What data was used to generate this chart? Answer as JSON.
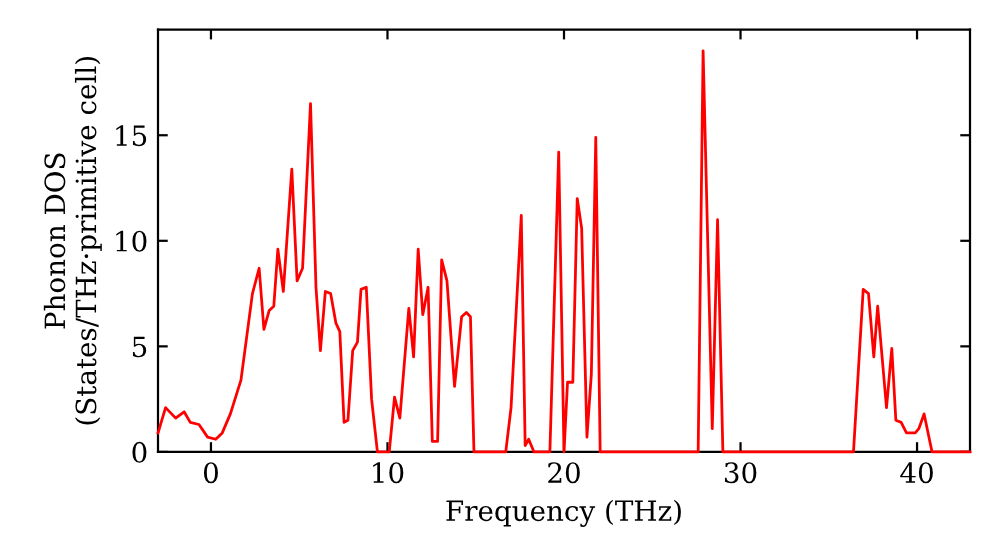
{
  "chart_data": {
    "type": "line",
    "xlabel": "Frequency (THz)",
    "ylabel": "Phonon DOS\n(States/THz·primitive cell)",
    "xlim": [
      -3,
      43
    ],
    "ylim": [
      0,
      20
    ],
    "xticks": [
      0,
      10,
      20,
      30,
      40
    ],
    "yticks": [
      0,
      5,
      10,
      15
    ],
    "grid": false,
    "marker": "none",
    "line_style": "solid",
    "series": [
      {
        "color": "#ff0000",
        "x": [
          -3,
          -2.57,
          -2.0,
          -1.52,
          -1.17,
          -0.68,
          -0.19,
          0.27,
          0.64,
          1.1,
          1.7,
          2.35,
          2.73,
          3.0,
          3.3,
          3.56,
          3.79,
          4.1,
          4.58,
          4.88,
          5.19,
          5.64,
          5.95,
          6.2,
          6.48,
          6.78,
          7.08,
          7.3,
          7.54,
          7.76,
          8.03,
          8.3,
          8.5,
          8.8,
          9.1,
          9.43,
          10.1,
          10.4,
          10.7,
          11.21,
          11.48,
          11.74,
          12.0,
          12.3,
          12.54,
          12.84,
          13.07,
          13.37,
          13.8,
          14.2,
          14.47,
          14.7,
          14.9,
          16.7,
          17.0,
          17.58,
          17.8,
          18.0,
          18.3,
          19.2,
          19.7,
          20.0,
          20.2,
          20.5,
          20.75,
          21.0,
          21.3,
          21.55,
          21.8,
          22.05,
          27.6,
          27.88,
          28.4,
          28.7,
          29.0,
          36.4,
          36.95,
          37.25,
          37.55,
          37.77,
          38.27,
          38.57,
          38.8,
          39.1,
          39.4,
          39.9,
          40.1,
          40.4,
          40.85,
          43
        ],
        "values": [
          0.9,
          2.1,
          1.6,
          1.9,
          1.4,
          1.3,
          0.7,
          0.6,
          0.9,
          1.8,
          3.4,
          7.5,
          8.7,
          5.8,
          6.7,
          6.9,
          9.6,
          7.6,
          13.4,
          8.1,
          8.7,
          16.5,
          7.8,
          4.8,
          7.6,
          7.5,
          6.1,
          5.7,
          1.4,
          1.5,
          4.8,
          5.2,
          7.7,
          7.8,
          2.5,
          0,
          0,
          2.6,
          1.6,
          6.8,
          4.5,
          9.6,
          6.5,
          7.8,
          0.5,
          0.5,
          9.1,
          8.1,
          3.1,
          6.4,
          6.6,
          6.4,
          0,
          0,
          2.1,
          11.2,
          0.3,
          0.6,
          0,
          0,
          14.2,
          0,
          3.3,
          3.3,
          12.0,
          10.6,
          0.7,
          3.7,
          14.9,
          0,
          0,
          19.0,
          1.1,
          11.0,
          0,
          0,
          7.7,
          7.5,
          4.5,
          6.9,
          2.1,
          4.9,
          1.5,
          1.4,
          0.9,
          0.9,
          1.1,
          1.8,
          0,
          0
        ]
      }
    ]
  }
}
